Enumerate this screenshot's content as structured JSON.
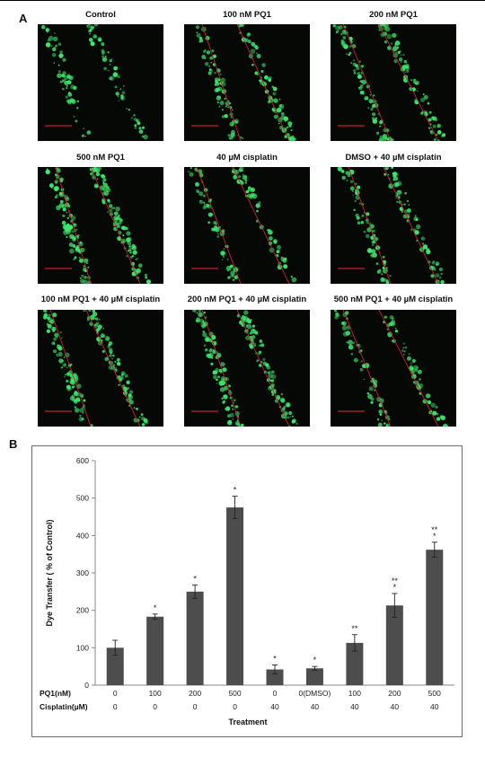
{
  "panel_a": {
    "letter": "A",
    "images": [
      {
        "title": "Control",
        "lines": false
      },
      {
        "title": "100 nM PQ1",
        "lines": true
      },
      {
        "title": "200 nM PQ1",
        "lines": true
      },
      {
        "title": "500 nM PQ1",
        "lines": true
      },
      {
        "title": "40 µM cisplatin",
        "lines": true
      },
      {
        "title": "DMSO + 40 µM cisplatin",
        "lines": true
      },
      {
        "title": "100 nM PQ1 + 40 µM cisplatin",
        "lines": true
      },
      {
        "title": "200 nM PQ1 + 40 µM cisplatin",
        "lines": true
      },
      {
        "title": "500 nM PQ1 + 40 µM cisplatin",
        "lines": true
      }
    ]
  },
  "panel_b": {
    "letter": "B"
  },
  "colors": {
    "bar": "#4d4d4d",
    "cell_green": "#3de86a",
    "line_red": "#c8202a",
    "microscope_bg": "#050805"
  },
  "chart_data": {
    "type": "bar",
    "ylabel": "Dye Transfer ( % of Control)",
    "xlabel": "Treatment",
    "ylim": [
      0,
      600
    ],
    "yticks": [
      0,
      100,
      200,
      300,
      400,
      500,
      600
    ],
    "grid": false,
    "row_labels": [
      "PQ1(nM)",
      "Cisplatin(µM)"
    ],
    "pq1_row": [
      "0",
      "100",
      "200",
      "500",
      "0",
      "0(DMSO)",
      "100",
      "200",
      "500"
    ],
    "cisplatin_row": [
      "0",
      "0",
      "0",
      "0",
      "40",
      "40",
      "40",
      "40",
      "40"
    ],
    "values": [
      100,
      183,
      250,
      475,
      42,
      45,
      113,
      213,
      362
    ],
    "errors": [
      20,
      7,
      18,
      30,
      12,
      5,
      22,
      32,
      20
    ],
    "significance": [
      "",
      "*",
      "*",
      "*",
      "*",
      "*",
      "**",
      "**\n*",
      "**\n*"
    ]
  }
}
